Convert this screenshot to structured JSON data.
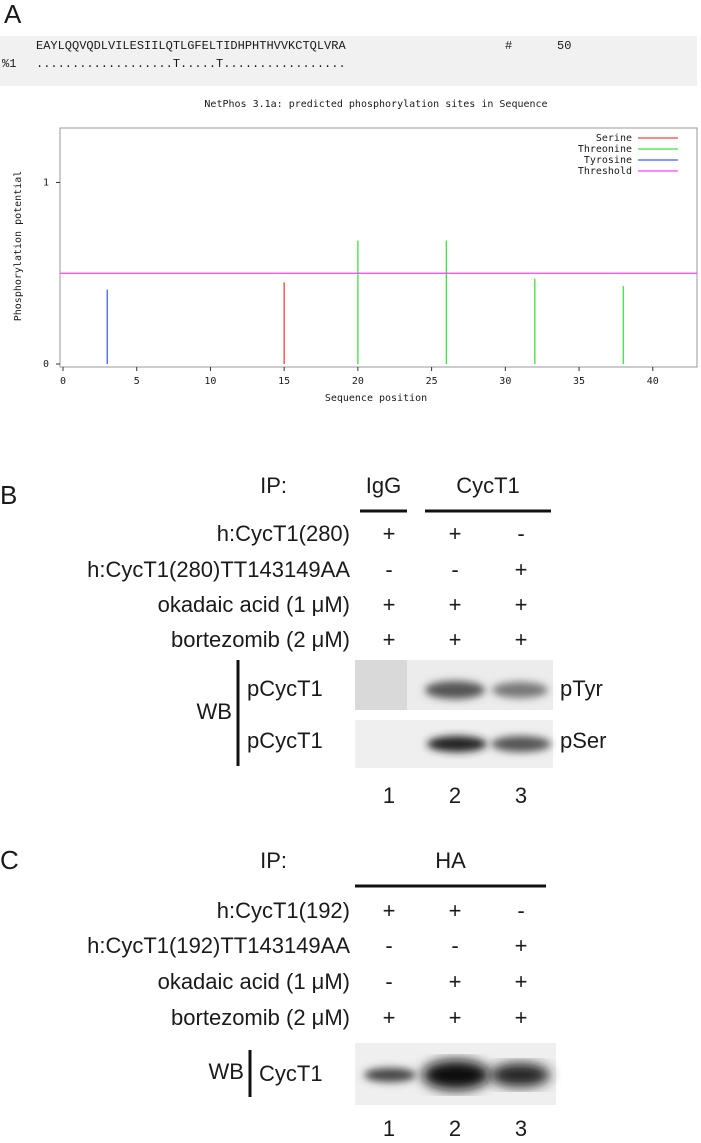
{
  "panel_labels": [
    "A",
    "B",
    "C"
  ],
  "sequence": {
    "residues": "EAYLQQVQDLVILESIILQTLGFELTIDHPHTHVVKCTQLVRA",
    "hash": "#",
    "number": "50",
    "prefix": "%1",
    "predictions": "...................T.....T................."
  },
  "chart_data": {
    "type": "stem",
    "title": "NetPhos 3.1a: predicted phosphorylation sites in Sequence",
    "xlabel": "Sequence position",
    "ylabel": "Phosphorylation potential",
    "xlim": [
      0,
      43
    ],
    "ylim": [
      0,
      1.3
    ],
    "xticks": [
      0,
      5,
      10,
      15,
      20,
      25,
      30,
      35,
      40
    ],
    "yticks": [
      0,
      1
    ],
    "legend": "upper right",
    "series": [
      {
        "name": "Serine",
        "color": "#ff4040",
        "x": [
          15
        ],
        "values": [
          0.45
        ]
      },
      {
        "name": "Threonine",
        "color": "#40e040",
        "x": [
          20,
          26,
          32,
          38
        ],
        "values": [
          0.68,
          0.68,
          0.47,
          0.43
        ]
      },
      {
        "name": "Tyrosine",
        "color": "#4060ff",
        "x": [
          3
        ],
        "values": [
          0.41
        ]
      },
      {
        "name": "Threshold",
        "color": "#ff40ff",
        "values": [
          0.5
        ]
      }
    ]
  },
  "panel_b": {
    "ip_label": "IP:",
    "ip_groups": [
      "IgG",
      "CycT1"
    ],
    "rows": [
      {
        "label": "h:CycT1(280)",
        "marks": [
          "+",
          "+",
          "-"
        ]
      },
      {
        "label": "h:CycT1(280)TT143149AA",
        "marks": [
          "-",
          "-",
          "+"
        ]
      },
      {
        "label": "okadaic acid (1 μM)",
        "marks": [
          "+",
          "+",
          "+"
        ]
      },
      {
        "label": "bortezomib (2 μM)",
        "marks": [
          "+",
          "+",
          "+"
        ]
      }
    ],
    "wb_label": "WB",
    "blots": [
      {
        "antibody": "pCycT1",
        "probe": "pTyr"
      },
      {
        "antibody": "pCycT1",
        "probe": "pSer"
      }
    ],
    "lanes": [
      "1",
      "2",
      "3"
    ]
  },
  "panel_c": {
    "ip_label": "IP:",
    "ip_groups": [
      "HA"
    ],
    "rows": [
      {
        "label": "h:CycT1(192)",
        "marks": [
          "+",
          "+",
          "-"
        ]
      },
      {
        "label": "h:CycT1(192)TT143149AA",
        "marks": [
          "-",
          "-",
          "+"
        ]
      },
      {
        "label": "okadaic acid (1 μM)",
        "marks": [
          "-",
          "+",
          "+"
        ]
      },
      {
        "label": "bortezomib (2 μM)",
        "marks": [
          "+",
          "+",
          "+"
        ]
      }
    ],
    "wb_label": "WB",
    "blots": [
      {
        "antibody": "CycT1"
      }
    ],
    "lanes": [
      "1",
      "2",
      "3"
    ]
  }
}
